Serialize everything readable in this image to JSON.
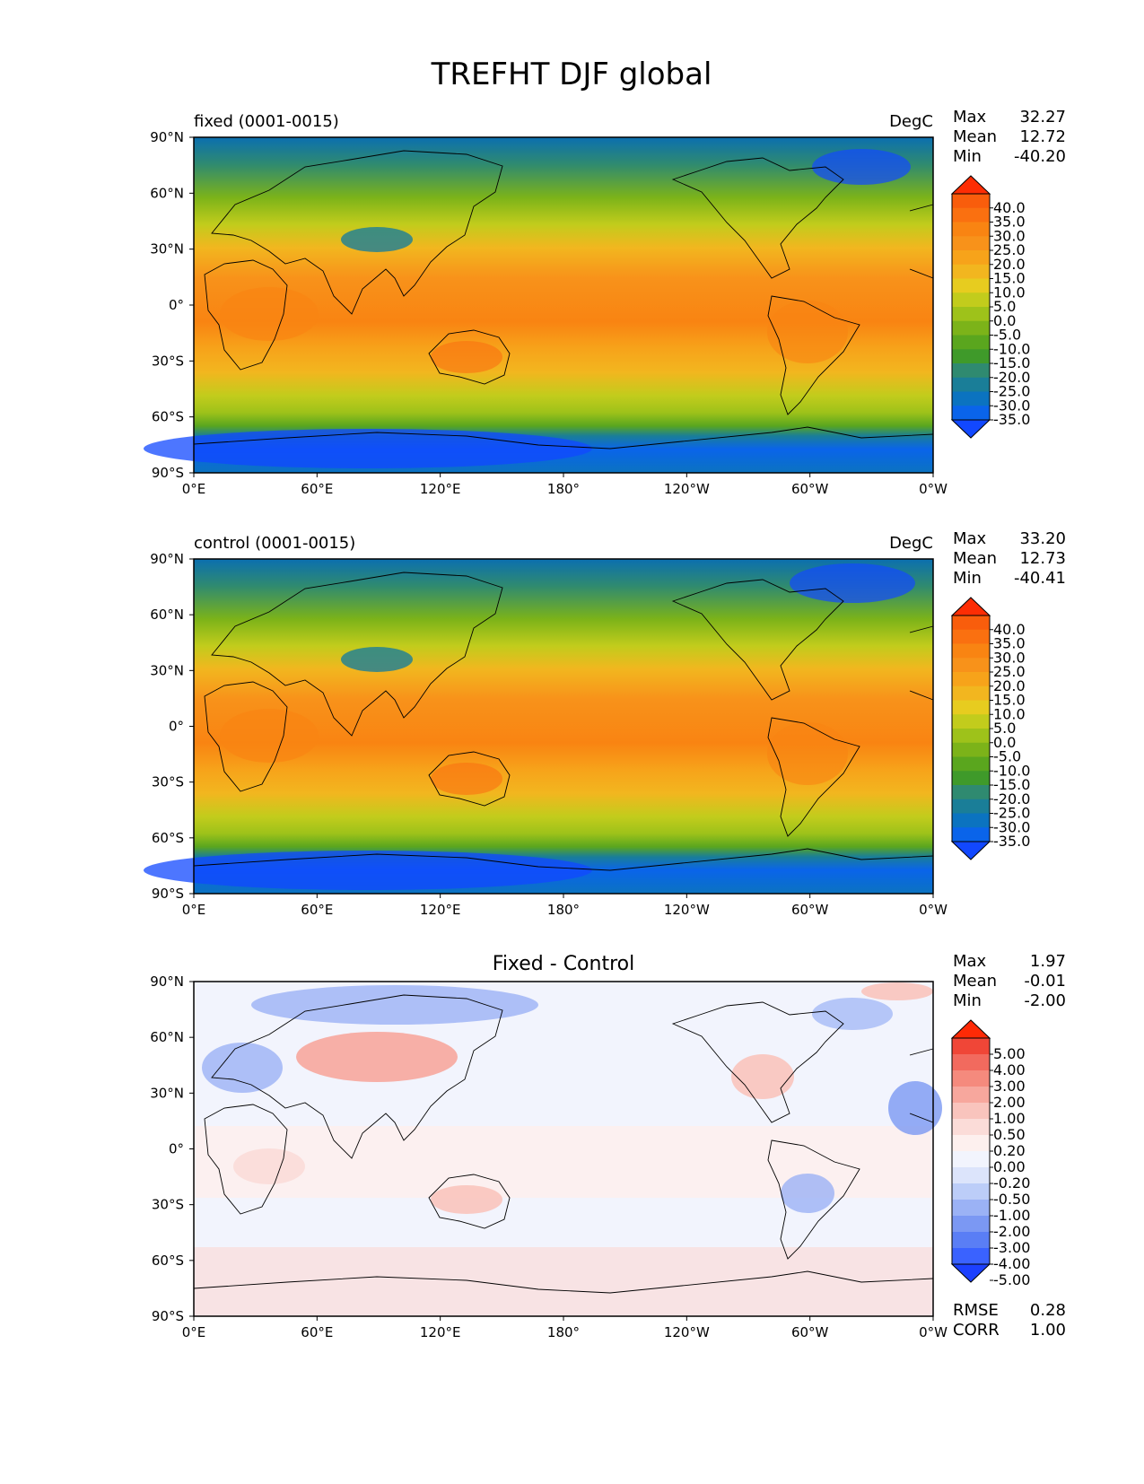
{
  "title": "TREFHT DJF global",
  "colors": {
    "abs_levels": [
      "#1248ff",
      "#0a64ea",
      "#0b73c0",
      "#1a7e98",
      "#2f8a70",
      "#3f9a2a",
      "#5aa61e",
      "#7cb319",
      "#9ec21a",
      "#c2cc1c",
      "#e7cc1f",
      "#f2b61f",
      "#f7a31a",
      "#f8921a",
      "#f98412",
      "#fa7010",
      "#f95d0c",
      "#fd2d04"
    ],
    "diff_levels": [
      "#1c40ff",
      "#3a62ff",
      "#5a7ef5",
      "#7b98f3",
      "#9bb2f5",
      "#bccdf8",
      "#dce4fb",
      "#f2f4fd",
      "#fdf0ee",
      "#fbdcd8",
      "#f9c4bd",
      "#f7a79d",
      "#f58a7d",
      "#f26a5e",
      "#f04637",
      "#fe2a06"
    ],
    "coast": "#000000"
  },
  "chart_data": [
    {
      "type": "heatmap",
      "panel": "fixed",
      "left_title": "fixed (0001-0015)",
      "right_title": "DegC",
      "stats": [
        {
          "label": "Max",
          "value": "32.27"
        },
        {
          "label": "Mean",
          "value": "12.72"
        },
        {
          "label": "Min",
          "value": "-40.20"
        }
      ],
      "colorbar_levels": [
        "40.0",
        "35.0",
        "30.0",
        "25.0",
        "20.0",
        "15.0",
        "10.0",
        "5.0",
        "0.0",
        "-5.0",
        "-10.0",
        "-15.0",
        "-20.0",
        "-25.0",
        "-30.0",
        "-35.0"
      ],
      "x_ticks": [
        "0°E",
        "60°E",
        "120°E",
        "180°",
        "120°W",
        "60°W",
        "0°W"
      ],
      "y_ticks": [
        "90°N",
        "60°N",
        "30°N",
        "0°",
        "30°S",
        "60°S",
        "90°S"
      ],
      "lon_range": [
        0,
        360
      ],
      "lat_range": [
        -90,
        90
      ]
    },
    {
      "type": "heatmap",
      "panel": "control",
      "left_title": "control (0001-0015)",
      "right_title": "DegC",
      "stats": [
        {
          "label": "Max",
          "value": "33.20"
        },
        {
          "label": "Mean",
          "value": "12.73"
        },
        {
          "label": "Min",
          "value": "-40.41"
        }
      ],
      "colorbar_levels": [
        "40.0",
        "35.0",
        "30.0",
        "25.0",
        "20.0",
        "15.0",
        "10.0",
        "5.0",
        "0.0",
        "-5.0",
        "-10.0",
        "-15.0",
        "-20.0",
        "-25.0",
        "-30.0",
        "-35.0"
      ],
      "x_ticks": [
        "0°E",
        "60°E",
        "120°E",
        "180°",
        "120°W",
        "60°W",
        "0°W"
      ],
      "y_ticks": [
        "90°N",
        "60°N",
        "30°N",
        "0°",
        "30°S",
        "60°S",
        "90°S"
      ],
      "lon_range": [
        0,
        360
      ],
      "lat_range": [
        -90,
        90
      ]
    },
    {
      "type": "heatmap",
      "panel": "diff",
      "center_title": "Fixed - Control",
      "stats": [
        {
          "label": "Max",
          "value": "1.97"
        },
        {
          "label": "Mean",
          "value": "-0.01"
        },
        {
          "label": "Min",
          "value": "-2.00"
        }
      ],
      "colorbar_levels": [
        "5.00",
        "4.00",
        "3.00",
        "2.00",
        "1.00",
        "0.50",
        "0.20",
        "0.00",
        "-0.20",
        "-0.50",
        "-1.00",
        "-2.00",
        "-3.00",
        "-4.00",
        "-5.00"
      ],
      "x_ticks": [
        "0°E",
        "60°E",
        "120°E",
        "180°",
        "120°W",
        "60°W",
        "0°W"
      ],
      "y_ticks": [
        "90°N",
        "60°N",
        "30°N",
        "0°",
        "30°S",
        "60°S",
        "90°S"
      ],
      "lon_range": [
        0,
        360
      ],
      "lat_range": [
        -90,
        90
      ],
      "extra_stats": [
        {
          "label": "RMSE",
          "value": "0.28"
        },
        {
          "label": "CORR",
          "value": "1.00"
        }
      ]
    }
  ]
}
